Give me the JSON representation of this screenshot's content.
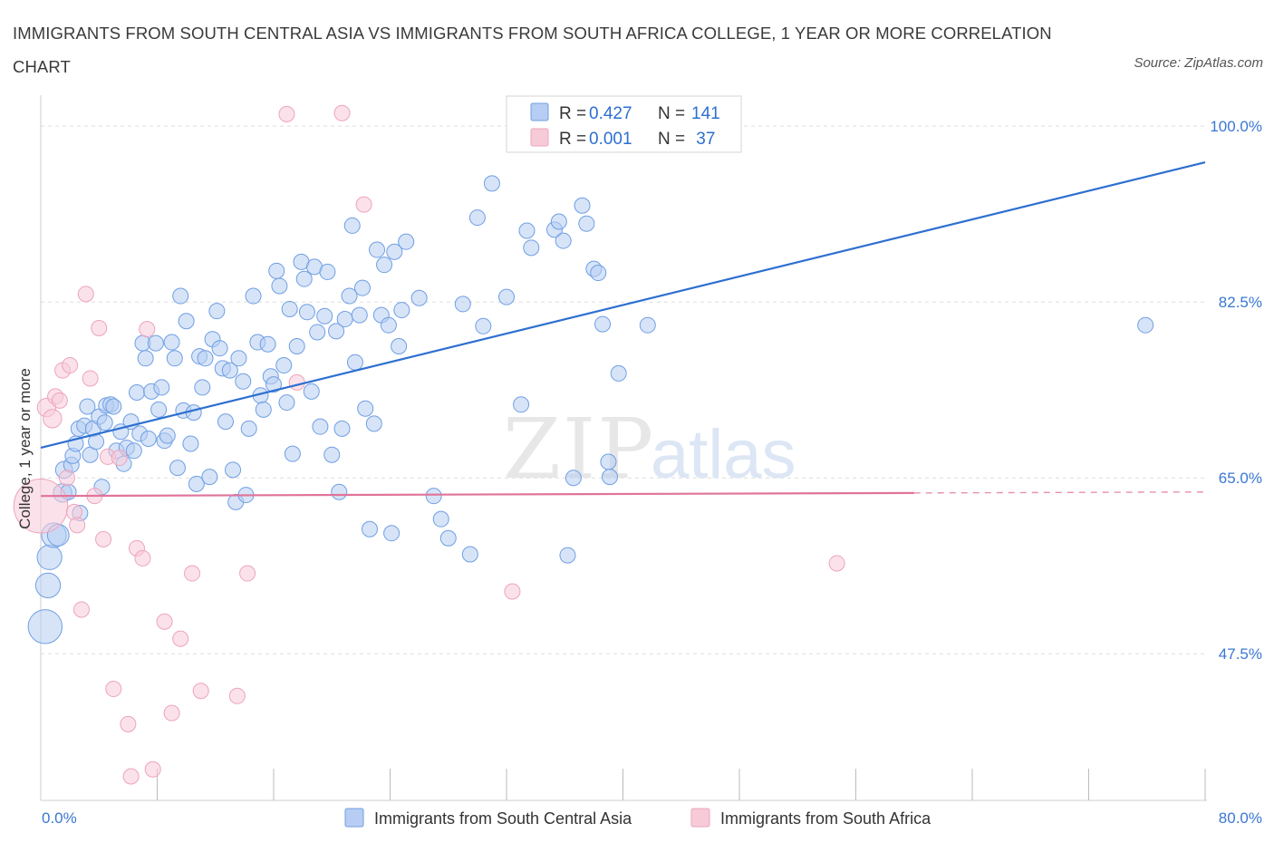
{
  "title": "IMMIGRANTS FROM SOUTH CENTRAL ASIA VS IMMIGRANTS FROM SOUTH AFRICA COLLEGE, 1 YEAR OR MORE CORRELATION CHART",
  "source": "Source: ZipAtlas.com",
  "watermark": {
    "zip": "ZIP",
    "atlas": "atlas"
  },
  "colors": {
    "blue": "#2d6fd0",
    "blue_fill": "#b7cdf3",
    "blue_stroke": "#6f9fe3",
    "pink": "#e0749b",
    "pink_fill": "#f7cad8",
    "pink_stroke": "#eda4bc",
    "axis_label": "#3a77d3",
    "grid": "#dddddd"
  },
  "legend_top": [
    {
      "r_label": "R = ",
      "r_value": "0.427",
      "n_label": "N = ",
      "n_value": "141"
    },
    {
      "r_label": "R = ",
      "r_value": "0.001",
      "n_label": "N = ",
      "n_value": " 37"
    }
  ],
  "chart_data": {
    "type": "scatter",
    "xlabel": "",
    "ylabel": "College, 1 year or more",
    "xlim": [
      0,
      80
    ],
    "ylim": [
      33,
      102
    ],
    "x_tick_labels": [
      {
        "value": 0,
        "label": "0.0%"
      },
      {
        "value": 80,
        "label": "80.0%"
      }
    ],
    "y_tick_labels": [
      {
        "value": 100,
        "label": "100.0%"
      },
      {
        "value": 82.5,
        "label": "82.5%"
      },
      {
        "value": 65,
        "label": "65.0%"
      },
      {
        "value": 47.5,
        "label": "47.5%"
      }
    ],
    "grid": true,
    "legend_position": "bottom",
    "series": [
      {
        "name": "Immigrants from South Central Asia",
        "color": "#2d6fd0",
        "trend": {
          "x": [
            0,
            80
          ],
          "y": [
            68.0,
            96.4
          ],
          "dashed_from": null
        },
        "points": [
          [
            0.3,
            50.2,
            2.2
          ],
          [
            0.5,
            54.3,
            1.6
          ],
          [
            0.6,
            57.1,
            1.6
          ],
          [
            0.9,
            59.3,
            1.6
          ],
          [
            1.2,
            59.3,
            1.4
          ],
          [
            1.5,
            63.5,
            1.2
          ],
          [
            1.6,
            65.8,
            1.1
          ],
          [
            1.9,
            63.6,
            1.0
          ],
          [
            2.1,
            66.3,
            1.0
          ],
          [
            2.2,
            67.2,
            1.0
          ],
          [
            2.4,
            68.4,
            1.0
          ],
          [
            2.6,
            69.9,
            1.0
          ],
          [
            2.7,
            61.5,
            1.0
          ],
          [
            3.0,
            70.2,
            1.0
          ],
          [
            3.2,
            72.1,
            1.0
          ],
          [
            3.4,
            67.3,
            1.0
          ],
          [
            3.6,
            69.9,
            1.0
          ],
          [
            3.8,
            68.6,
            1.0
          ],
          [
            4.0,
            71.1,
            1.0
          ],
          [
            4.2,
            64.1,
            1.0
          ],
          [
            4.4,
            70.5,
            1.0
          ],
          [
            4.5,
            72.2,
            1.0
          ],
          [
            4.8,
            72.3,
            1.0
          ],
          [
            5.0,
            72.1,
            1.0
          ],
          [
            5.2,
            67.7,
            1.0
          ],
          [
            5.5,
            69.6,
            1.0
          ],
          [
            5.7,
            66.4,
            1.0
          ],
          [
            5.9,
            68.0,
            1.0
          ],
          [
            6.2,
            70.6,
            1.0
          ],
          [
            6.4,
            67.7,
            1.0
          ],
          [
            6.6,
            73.5,
            1.0
          ],
          [
            6.8,
            69.4,
            1.0
          ],
          [
            7.0,
            78.4,
            1.0
          ],
          [
            7.2,
            76.9,
            1.0
          ],
          [
            7.4,
            68.9,
            1.0
          ],
          [
            7.6,
            73.6,
            1.0
          ],
          [
            7.9,
            78.4,
            1.0
          ],
          [
            8.1,
            71.8,
            1.0
          ],
          [
            8.3,
            74.0,
            1.0
          ],
          [
            8.5,
            68.7,
            1.0
          ],
          [
            8.7,
            69.2,
            1.0
          ],
          [
            9.0,
            78.5,
            1.0
          ],
          [
            9.2,
            76.9,
            1.0
          ],
          [
            9.4,
            66.0,
            1.0
          ],
          [
            9.6,
            83.1,
            1.0
          ],
          [
            9.8,
            71.7,
            1.0
          ],
          [
            10.0,
            80.6,
            1.0
          ],
          [
            10.3,
            68.4,
            1.0
          ],
          [
            10.5,
            71.5,
            1.0
          ],
          [
            10.7,
            64.4,
            1.0
          ],
          [
            10.9,
            77.1,
            1.0
          ],
          [
            11.1,
            74.0,
            1.0
          ],
          [
            11.3,
            76.9,
            1.0
          ],
          [
            11.6,
            65.1,
            1.0
          ],
          [
            11.8,
            78.8,
            1.0
          ],
          [
            12.1,
            81.6,
            1.0
          ],
          [
            12.3,
            77.9,
            1.0
          ],
          [
            12.5,
            75.9,
            1.0
          ],
          [
            12.7,
            70.6,
            1.0
          ],
          [
            13.0,
            75.7,
            1.0
          ],
          [
            13.2,
            65.8,
            1.0
          ],
          [
            13.4,
            62.6,
            1.0
          ],
          [
            13.6,
            76.9,
            1.0
          ],
          [
            13.9,
            74.6,
            1.0
          ],
          [
            14.1,
            63.3,
            1.0
          ],
          [
            14.3,
            69.9,
            1.0
          ],
          [
            14.6,
            83.1,
            1.0
          ],
          [
            14.9,
            78.5,
            1.0
          ],
          [
            15.1,
            73.2,
            1.0
          ],
          [
            15.3,
            71.8,
            1.0
          ],
          [
            15.6,
            78.3,
            1.0
          ],
          [
            15.8,
            75.1,
            1.0
          ],
          [
            16.0,
            74.3,
            1.0
          ],
          [
            16.2,
            85.6,
            1.0
          ],
          [
            16.4,
            84.1,
            1.0
          ],
          [
            16.7,
            76.2,
            1.0
          ],
          [
            16.9,
            72.5,
            1.0
          ],
          [
            17.1,
            81.8,
            1.0
          ],
          [
            17.3,
            67.4,
            1.0
          ],
          [
            17.6,
            78.1,
            1.0
          ],
          [
            17.9,
            86.5,
            1.0
          ],
          [
            18.1,
            84.8,
            1.0
          ],
          [
            18.3,
            81.5,
            1.0
          ],
          [
            18.6,
            73.6,
            1.0
          ],
          [
            18.8,
            86.0,
            1.0
          ],
          [
            19.0,
            79.5,
            1.0
          ],
          [
            19.2,
            70.1,
            1.0
          ],
          [
            19.5,
            81.1,
            1.0
          ],
          [
            19.7,
            85.5,
            1.0
          ],
          [
            20.0,
            67.3,
            1.0
          ],
          [
            20.3,
            79.6,
            1.0
          ],
          [
            20.5,
            63.6,
            1.0
          ],
          [
            20.7,
            69.9,
            1.0
          ],
          [
            20.9,
            80.8,
            1.0
          ],
          [
            21.2,
            83.1,
            1.0
          ],
          [
            21.4,
            90.1,
            1.0
          ],
          [
            21.6,
            76.5,
            1.0
          ],
          [
            21.9,
            81.2,
            1.0
          ],
          [
            22.1,
            83.9,
            1.0
          ],
          [
            22.3,
            71.9,
            1.0
          ],
          [
            22.6,
            59.9,
            1.0
          ],
          [
            22.9,
            70.4,
            1.0
          ],
          [
            23.1,
            87.7,
            1.0
          ],
          [
            23.4,
            81.2,
            1.0
          ],
          [
            23.6,
            86.2,
            1.0
          ],
          [
            23.9,
            80.2,
            1.0
          ],
          [
            24.1,
            59.5,
            1.0
          ],
          [
            24.3,
            87.5,
            1.0
          ],
          [
            24.6,
            78.1,
            1.0
          ],
          [
            24.8,
            81.7,
            1.0
          ],
          [
            25.1,
            88.5,
            1.0
          ],
          [
            26.0,
            82.9,
            1.0
          ],
          [
            27.0,
            63.2,
            1.0
          ],
          [
            27.5,
            60.9,
            1.0
          ],
          [
            28.0,
            59.0,
            1.0
          ],
          [
            29.0,
            82.3,
            1.0
          ],
          [
            29.5,
            57.4,
            1.0
          ],
          [
            30.0,
            90.9,
            1.0
          ],
          [
            30.4,
            80.1,
            1.0
          ],
          [
            31.0,
            94.3,
            1.0
          ],
          [
            32.0,
            83.0,
            1.0
          ],
          [
            33.0,
            72.3,
            1.0
          ],
          [
            33.4,
            89.6,
            1.0
          ],
          [
            33.7,
            87.9,
            1.0
          ],
          [
            35.3,
            89.7,
            1.0
          ],
          [
            35.6,
            90.5,
            1.0
          ],
          [
            35.9,
            88.6,
            1.0
          ],
          [
            36.2,
            57.3,
            1.0
          ],
          [
            36.6,
            65.0,
            1.0
          ],
          [
            37.2,
            92.1,
            1.0
          ],
          [
            37.5,
            90.3,
            1.0
          ],
          [
            38.0,
            85.8,
            1.0
          ],
          [
            38.3,
            85.4,
            1.0
          ],
          [
            38.6,
            80.3,
            1.0
          ],
          [
            39.0,
            66.6,
            1.0
          ],
          [
            39.1,
            65.1,
            1.0
          ],
          [
            39.7,
            75.4,
            1.0
          ],
          [
            41.7,
            80.2,
            1.0
          ],
          [
            75.9,
            80.2,
            1.0
          ]
        ]
      },
      {
        "name": "Immigrants from South Africa",
        "color": "#e0749b",
        "trend": {
          "x": [
            0,
            80
          ],
          "y": [
            63.2,
            63.6
          ],
          "dashed_from": 60
        },
        "points": [
          [
            0.0,
            62.2,
            3.5
          ],
          [
            0.4,
            72.0,
            1.2
          ],
          [
            0.8,
            70.9,
            1.2
          ],
          [
            1.0,
            73.1,
            1.0
          ],
          [
            1.3,
            72.7,
            1.0
          ],
          [
            1.5,
            75.7,
            1.0
          ],
          [
            1.8,
            65.0,
            1.0
          ],
          [
            2.0,
            76.2,
            1.0
          ],
          [
            2.3,
            61.6,
            1.0
          ],
          [
            2.5,
            60.3,
            1.0
          ],
          [
            2.8,
            51.9,
            1.0
          ],
          [
            3.1,
            83.3,
            1.0
          ],
          [
            3.4,
            74.9,
            1.0
          ],
          [
            3.7,
            63.2,
            1.0
          ],
          [
            4.0,
            79.9,
            1.0
          ],
          [
            4.3,
            58.9,
            1.0
          ],
          [
            4.6,
            67.1,
            1.0
          ],
          [
            5.0,
            44.0,
            1.0
          ],
          [
            5.4,
            67.0,
            1.0
          ],
          [
            6.0,
            40.5,
            1.0
          ],
          [
            6.2,
            35.3,
            1.0
          ],
          [
            6.6,
            58.0,
            1.0
          ],
          [
            7.0,
            57.0,
            1.0
          ],
          [
            7.3,
            79.8,
            1.0
          ],
          [
            7.7,
            36.0,
            1.0
          ],
          [
            8.5,
            50.7,
            1.0
          ],
          [
            9.0,
            41.6,
            1.0
          ],
          [
            9.6,
            49.0,
            1.0
          ],
          [
            10.4,
            55.5,
            1.0
          ],
          [
            11.0,
            43.8,
            1.0
          ],
          [
            13.5,
            43.3,
            1.0
          ],
          [
            14.2,
            55.5,
            1.0
          ],
          [
            16.9,
            101.2,
            1.0
          ],
          [
            17.6,
            74.5,
            1.0
          ],
          [
            20.7,
            101.3,
            1.0
          ],
          [
            22.2,
            92.2,
            1.0
          ],
          [
            32.4,
            53.7,
            1.0
          ],
          [
            54.7,
            56.5,
            1.0
          ]
        ]
      }
    ]
  }
}
